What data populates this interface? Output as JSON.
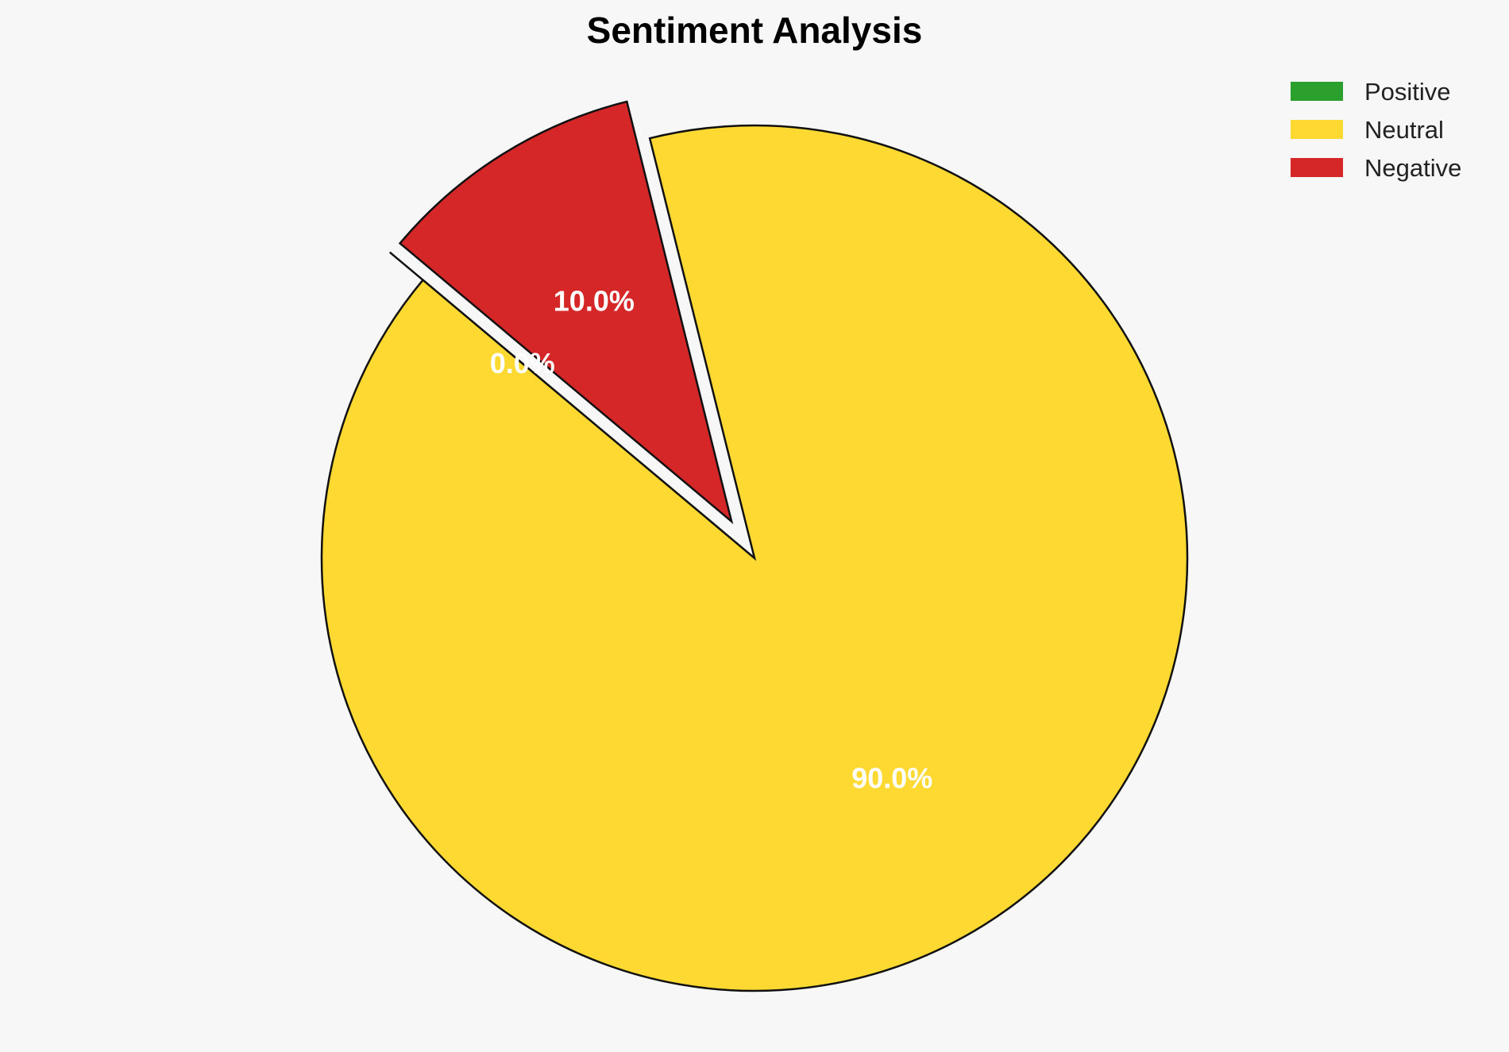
{
  "chart_data": {
    "type": "pie",
    "title": "Sentiment Analysis",
    "start_angle_deg": 140,
    "direction": "counterclockwise",
    "slices": [
      {
        "label": "Positive",
        "value": 0.0,
        "percent_label": "0.0%",
        "color": "#2ca02c",
        "exploded": true
      },
      {
        "label": "Neutral",
        "value": 90.0,
        "percent_label": "90.0%",
        "color": "#fdd931",
        "exploded": false
      },
      {
        "label": "Negative",
        "value": 10.0,
        "percent_label": "10.0%",
        "color": "#d62728",
        "exploded": true
      }
    ],
    "legend_position": "top-right"
  }
}
